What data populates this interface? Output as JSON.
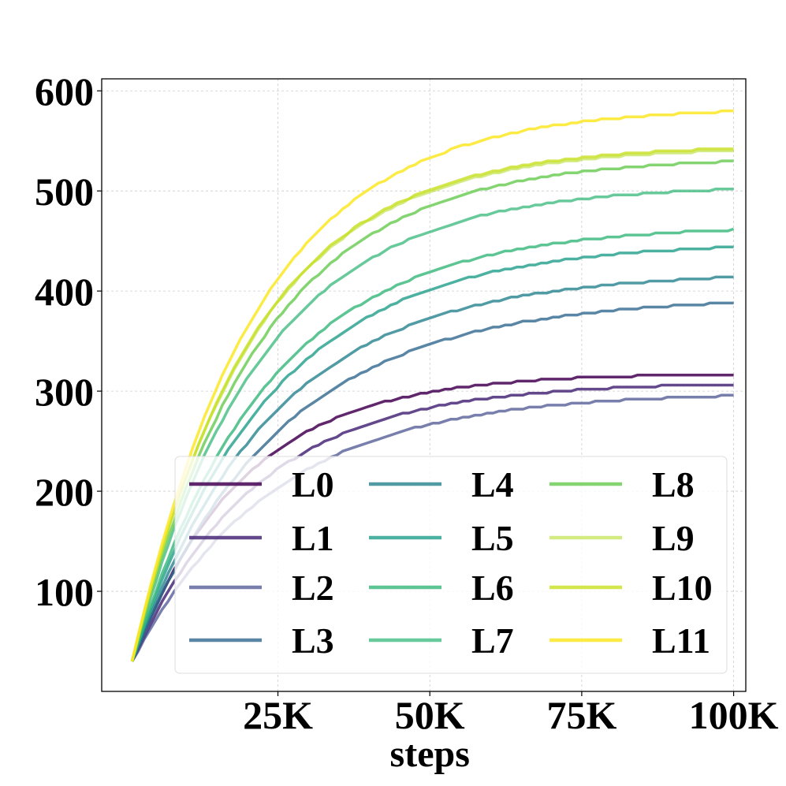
{
  "chart_data": {
    "type": "line",
    "title": "",
    "xlabel": "steps",
    "ylabel": "",
    "xlim": [
      -4000,
      102000
    ],
    "ylim": [
      0,
      612
    ],
    "xticks": [
      25000,
      50000,
      75000,
      100000
    ],
    "xtick_labels": [
      "25K",
      "50K",
      "75K",
      "100K"
    ],
    "yticks": [
      100,
      200,
      300,
      400,
      500,
      600
    ],
    "ytick_labels": [
      "100",
      "200",
      "300",
      "400",
      "500",
      "600"
    ],
    "grid": true,
    "legend_placement": "lower-right",
    "legend_columns": 3,
    "series": [
      {
        "name": "L0",
        "color": "#440154",
        "alpha": 0.85,
        "final": 319,
        "tau": 18000
      },
      {
        "name": "L1",
        "color": "#482878",
        "alpha": 0.85,
        "final": 310,
        "tau": 20500
      },
      {
        "name": "L2",
        "color": "#3e4989",
        "alpha": 0.7,
        "final": 300,
        "tau": 23000
      },
      {
        "name": "L3",
        "color": "#31688e",
        "alpha": 0.8,
        "final": 395,
        "tau": 24000
      },
      {
        "name": "L4",
        "color": "#26828e",
        "alpha": 0.8,
        "final": 420,
        "tau": 23000
      },
      {
        "name": "L5",
        "color": "#1f9e89",
        "alpha": 0.8,
        "final": 450,
        "tau": 22500
      },
      {
        "name": "L6",
        "color": "#35b779",
        "alpha": 0.8,
        "final": 467,
        "tau": 22000
      },
      {
        "name": "L7",
        "color": "#35b779",
        "alpha": 0.75,
        "final": 507,
        "tau": 21000
      },
      {
        "name": "L8",
        "color": "#6ece58",
        "alpha": 0.85,
        "final": 535,
        "tau": 21000
      },
      {
        "name": "L9",
        "color": "#b5de2b",
        "alpha": 0.6,
        "final": 545,
        "tau": 20000
      },
      {
        "name": "L10",
        "color": "#c8e020",
        "alpha": 0.8,
        "final": 547,
        "tau": 20000
      },
      {
        "name": "L11",
        "color": "#fde725",
        "alpha": 0.85,
        "final": 585,
        "tau": 20500
      }
    ],
    "x_start": 1000,
    "x_end": 100000,
    "y_start": 30
  }
}
